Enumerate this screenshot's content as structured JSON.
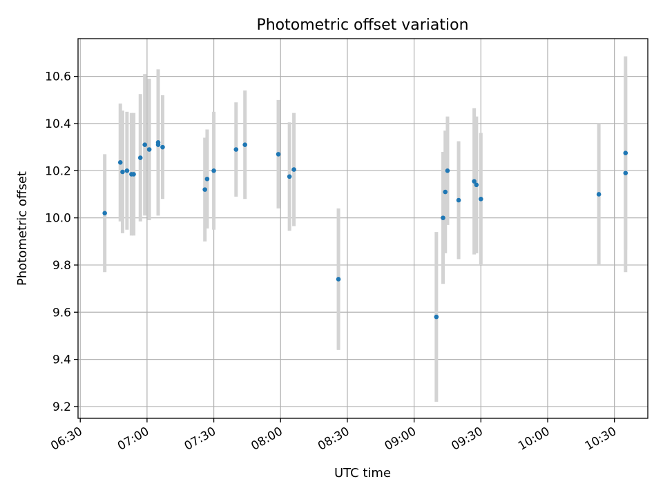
{
  "chart_data": {
    "type": "scatter",
    "title": "Photometric offset variation",
    "xlabel": "UTC time",
    "ylabel": "Photometric offset",
    "xlim": [
      "06:29",
      "10:45"
    ],
    "ylim": [
      9.15,
      10.76
    ],
    "xticks": [
      "06:30",
      "07:00",
      "07:30",
      "08:00",
      "08:30",
      "09:00",
      "09:30",
      "10:00",
      "10:30"
    ],
    "yticks": [
      "9.2",
      "9.4",
      "9.6",
      "9.8",
      "10.0",
      "10.2",
      "10.4",
      "10.6"
    ],
    "grid": true,
    "series": [
      {
        "points": [
          {
            "x": "06:41",
            "y": 10.02,
            "err": 0.25
          },
          {
            "x": "06:48",
            "y": 10.235,
            "err": 0.25
          },
          {
            "x": "06:49",
            "y": 10.195,
            "err": 0.26
          },
          {
            "x": "06:51",
            "y": 10.2,
            "err": 0.25
          },
          {
            "x": "06:53",
            "y": 10.185,
            "err": 0.26
          },
          {
            "x": "06:54",
            "y": 10.185,
            "err": 0.26
          },
          {
            "x": "06:57",
            "y": 10.255,
            "err": 0.27
          },
          {
            "x": "06:59",
            "y": 10.31,
            "err": 0.3
          },
          {
            "x": "07:01",
            "y": 10.29,
            "err": 0.3
          },
          {
            "x": "07:05",
            "y": 10.32,
            "err": 0.31
          },
          {
            "x": "07:05",
            "y": 10.31,
            "err": 0.3
          },
          {
            "x": "07:07",
            "y": 10.3,
            "err": 0.22
          },
          {
            "x": "07:26",
            "y": 10.12,
            "err": 0.22
          },
          {
            "x": "07:27",
            "y": 10.165,
            "err": 0.21
          },
          {
            "x": "07:30",
            "y": 10.2,
            "err": 0.25
          },
          {
            "x": "07:40",
            "y": 10.29,
            "err": 0.2
          },
          {
            "x": "07:44",
            "y": 10.31,
            "err": 0.23
          },
          {
            "x": "07:59",
            "y": 10.27,
            "err": 0.23
          },
          {
            "x": "08:04",
            "y": 10.175,
            "err": 0.23
          },
          {
            "x": "08:06",
            "y": 10.205,
            "err": 0.24
          },
          {
            "x": "08:26",
            "y": 9.74,
            "err": 0.3
          },
          {
            "x": "09:10",
            "y": 9.58,
            "err": 0.36
          },
          {
            "x": "09:13",
            "y": 10.0,
            "err": 0.28
          },
          {
            "x": "09:14",
            "y": 10.11,
            "err": 0.26
          },
          {
            "x": "09:15",
            "y": 10.2,
            "err": 0.23
          },
          {
            "x": "09:20",
            "y": 10.075,
            "err": 0.25
          },
          {
            "x": "09:27",
            "y": 10.155,
            "err": 0.31
          },
          {
            "x": "09:28",
            "y": 10.14,
            "err": 0.29
          },
          {
            "x": "09:30",
            "y": 10.08,
            "err": 0.28
          },
          {
            "x": "10:23",
            "y": 10.1,
            "err": 0.3
          },
          {
            "x": "10:35",
            "y": 10.275,
            "err": 0.41
          },
          {
            "x": "10:35",
            "y": 10.19,
            "err": 0.42
          }
        ]
      }
    ]
  }
}
